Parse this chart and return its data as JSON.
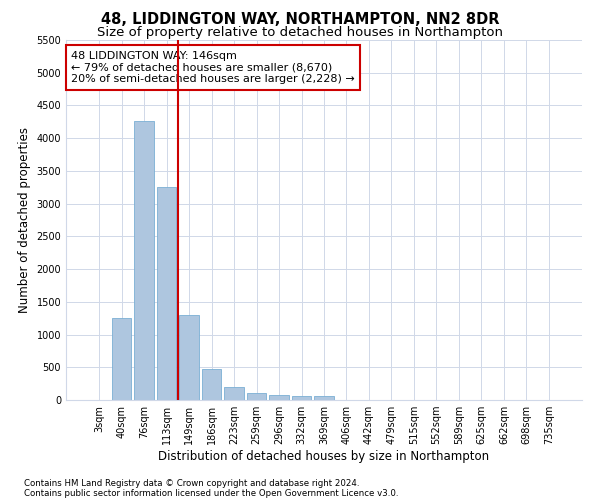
{
  "title": "48, LIDDINGTON WAY, NORTHAMPTON, NN2 8DR",
  "subtitle": "Size of property relative to detached houses in Northampton",
  "xlabel": "Distribution of detached houses by size in Northampton",
  "ylabel": "Number of detached properties",
  "footer_line1": "Contains HM Land Registry data © Crown copyright and database right 2024.",
  "footer_line2": "Contains public sector information licensed under the Open Government Licence v3.0.",
  "annotation_line1": "48 LIDDINGTON WAY: 146sqm",
  "annotation_line2": "← 79% of detached houses are smaller (8,670)",
  "annotation_line3": "20% of semi-detached houses are larger (2,228) →",
  "bar_color": "#aec6df",
  "bar_edge_color": "#7aafd4",
  "vline_color": "#cc0000",
  "vline_x_index": 4,
  "categories": [
    "3sqm",
    "40sqm",
    "76sqm",
    "113sqm",
    "149sqm",
    "186sqm",
    "223sqm",
    "259sqm",
    "296sqm",
    "332sqm",
    "369sqm",
    "406sqm",
    "442sqm",
    "479sqm",
    "515sqm",
    "552sqm",
    "589sqm",
    "625sqm",
    "662sqm",
    "698sqm",
    "735sqm"
  ],
  "values": [
    0,
    1250,
    4270,
    3250,
    1300,
    470,
    205,
    105,
    80,
    60,
    55,
    0,
    0,
    0,
    0,
    0,
    0,
    0,
    0,
    0,
    0
  ],
  "ylim": [
    0,
    5500
  ],
  "yticks": [
    0,
    500,
    1000,
    1500,
    2000,
    2500,
    3000,
    3500,
    4000,
    4500,
    5000,
    5500
  ],
  "background_color": "#ffffff",
  "grid_color": "#d0d8e8",
  "title_fontsize": 10.5,
  "subtitle_fontsize": 9.5,
  "axis_label_fontsize": 8.5,
  "tick_fontsize": 7.0,
  "annotation_fontsize": 8.0
}
